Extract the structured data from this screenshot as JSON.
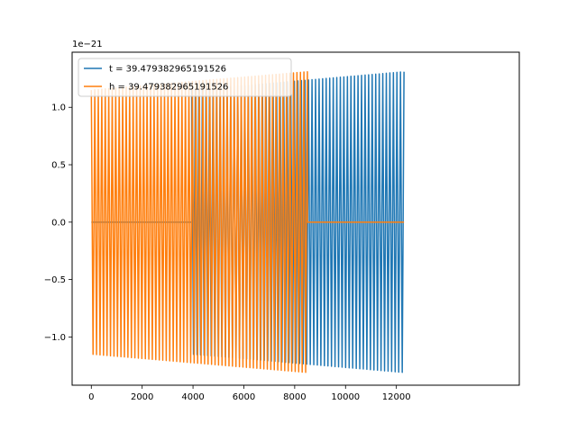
{
  "chart_data": {
    "type": "line",
    "title": "",
    "xlabel": "",
    "ylabel": "",
    "xlim": [
      -755,
      16835
    ],
    "ylim": [
      -1.42e-21,
      1.48e-21
    ],
    "x_ticks": [
      0,
      2000,
      4000,
      6000,
      8000,
      10000,
      12000
    ],
    "x_tick_labels": [
      "0",
      "2000",
      "4000",
      "6000",
      "8000",
      "10000",
      "12000"
    ],
    "y_ticks": [
      -1e-21,
      -5e-22,
      0,
      5e-22,
      1e-21
    ],
    "y_tick_labels": [
      "−1.0",
      "−0.5",
      "0.0",
      "0.5",
      "1.0"
    ],
    "y_offset_label": "1e−21",
    "grid": false,
    "legend_position": "top-left",
    "series": [
      {
        "name": "t = 39.479382965191526",
        "color": "#1f77b4",
        "segments": [
          {
            "x_start": 0,
            "x_end": 100,
            "kind": "flat",
            "amplitude_start": 0
          },
          {
            "x_start": 100,
            "x_end": 3950,
            "kind": "flat",
            "amplitude_start": 0
          },
          {
            "x_start": 3950,
            "x_end": 12300,
            "kind": "oscillation",
            "amplitude_start": 1.15e-21,
            "amplitude_end": 1.31e-21,
            "cycles": 60
          }
        ]
      },
      {
        "name": "h = 39.479382965191526",
        "color": "#ff7f0e",
        "segments": [
          {
            "x_start": 0,
            "x_end": 8500,
            "kind": "oscillation",
            "amplitude_start": 1.15e-21,
            "amplitude_end": 1.31e-21,
            "cycles": 62
          },
          {
            "x_start": 8500,
            "x_end": 12300,
            "kind": "flat",
            "amplitude_start": 0
          }
        ]
      }
    ]
  }
}
